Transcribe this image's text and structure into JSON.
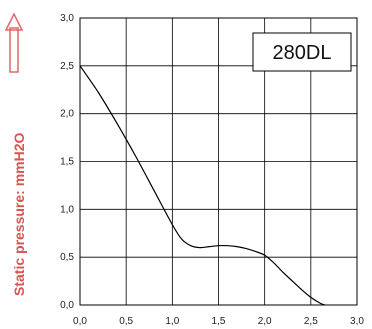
{
  "chart_data": {
    "type": "line",
    "title": "280DL",
    "xlabel": "",
    "ylabel": "Static pressure: mmH2O",
    "xlim": [
      0,
      3
    ],
    "ylim": [
      0,
      3
    ],
    "x_ticks": [
      "0,0",
      "0,5",
      "1,0",
      "1,5",
      "2,0",
      "2,5",
      "3,0"
    ],
    "y_ticks": [
      "0,0",
      "0,5",
      "1,0",
      "1,5",
      "2,0",
      "2,5",
      "3,0"
    ],
    "grid": true,
    "legend": "none",
    "series": [
      {
        "x": [
          0.0,
          0.2,
          0.4,
          0.6,
          0.8,
          1.0,
          1.1,
          1.2,
          1.3,
          1.4,
          1.5,
          1.6,
          1.7,
          1.8,
          1.9,
          2.0,
          2.1,
          2.2,
          2.3,
          2.4,
          2.5,
          2.6,
          2.65
        ],
        "y": [
          2.5,
          2.22,
          1.9,
          1.56,
          1.2,
          0.84,
          0.69,
          0.62,
          0.6,
          0.61,
          0.62,
          0.62,
          0.61,
          0.59,
          0.56,
          0.52,
          0.44,
          0.34,
          0.25,
          0.16,
          0.08,
          0.02,
          0.0
        ]
      }
    ],
    "colors": {
      "line": "#000000",
      "grid": "#000000",
      "ylabel": "#d9534f",
      "arrow": "#e06666"
    }
  }
}
